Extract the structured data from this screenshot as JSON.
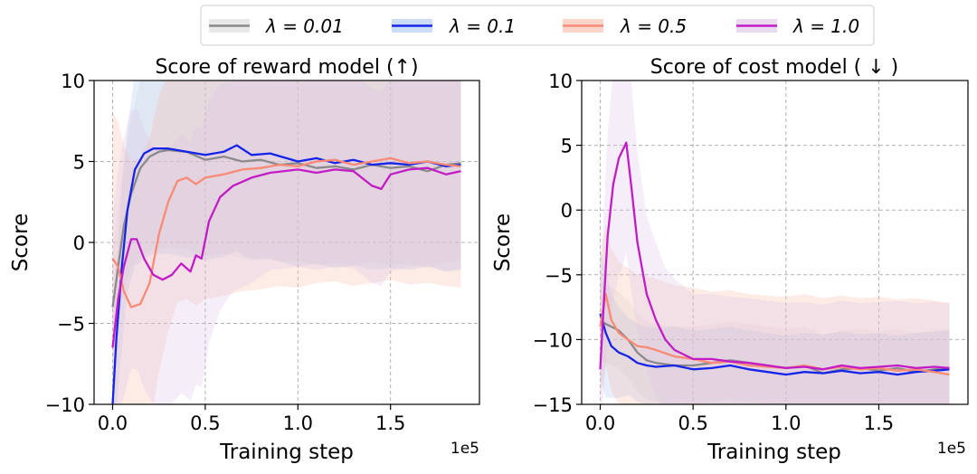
{
  "legend": {
    "position": "top-center",
    "items": [
      {
        "label": "λ = 0.01",
        "color": "#8a8a8a",
        "band": "#d9d9d9"
      },
      {
        "label": "λ = 0.1",
        "color": "#1524e8",
        "band": "#a9c6f0"
      },
      {
        "label": "λ = 0.5",
        "color": "#fa8a74",
        "band": "#f8b8a6"
      },
      {
        "label": "λ = 1.0",
        "color": "#c21cc6",
        "band": "#dcc2e6"
      }
    ]
  },
  "chart_data": [
    {
      "type": "line",
      "title": "Score of reward model (↑)",
      "xlabel": "Training step",
      "ylabel": "Score",
      "x_multiplier_label": "1e5",
      "xlim": [
        -0.1,
        1.98
      ],
      "ylim": [
        -10,
        10
      ],
      "xticks": [
        0.0,
        0.5,
        1.0,
        1.5
      ],
      "xtick_labels": [
        "0.0",
        "0.5",
        "1.0",
        "1.5"
      ],
      "yticks": [
        10,
        5,
        0,
        -5,
        -10
      ],
      "ytick_labels": [
        "10",
        "5",
        "0",
        "−5",
        "−10"
      ],
      "grid": true,
      "series": [
        {
          "name": "λ = 0.01",
          "x": [
            0.0,
            0.03,
            0.06,
            0.1,
            0.15,
            0.2,
            0.25,
            0.3,
            0.4,
            0.5,
            0.6,
            0.7,
            0.8,
            0.9,
            1.0,
            1.1,
            1.2,
            1.3,
            1.4,
            1.5,
            1.6,
            1.7,
            1.8,
            1.88
          ],
          "y": [
            -4.0,
            -1.5,
            1.0,
            3.0,
            4.6,
            5.3,
            5.6,
            5.7,
            5.6,
            5.1,
            5.3,
            5.0,
            5.1,
            4.8,
            4.9,
            4.6,
            4.7,
            4.5,
            4.8,
            4.6,
            4.7,
            4.4,
            4.8,
            4.9
          ],
          "band": [
            3.5,
            3.5,
            4.0,
            4.5,
            5.5,
            5.8,
            6.0,
            6.0,
            6.0,
            6.0,
            6.0,
            6.0,
            6.0,
            6.0,
            6.0,
            6.0,
            6.0,
            6.0,
            6.0,
            6.0,
            6.0,
            6.0,
            6.0,
            6.0
          ]
        },
        {
          "name": "λ = 0.1",
          "x": [
            0.0,
            0.02,
            0.05,
            0.08,
            0.12,
            0.17,
            0.22,
            0.3,
            0.4,
            0.5,
            0.6,
            0.67,
            0.75,
            0.85,
            1.0,
            1.1,
            1.2,
            1.3,
            1.4,
            1.5,
            1.6,
            1.7,
            1.8,
            1.88
          ],
          "y": [
            -10.0,
            -6.0,
            -1.5,
            2.0,
            4.5,
            5.5,
            5.8,
            5.8,
            5.6,
            5.4,
            5.6,
            6.0,
            5.4,
            5.5,
            5.0,
            5.2,
            4.9,
            5.1,
            4.8,
            4.9,
            4.8,
            5.0,
            4.7,
            4.8
          ],
          "band": [
            4.5,
            4.5,
            5.0,
            5.0,
            6.0,
            6.5,
            6.5,
            6.5,
            6.5,
            6.5,
            6.5,
            6.5,
            6.5,
            6.5,
            6.5,
            6.5,
            6.5,
            6.5,
            6.5,
            6.5,
            6.5,
            6.5,
            6.5,
            6.5
          ]
        },
        {
          "name": "λ = 0.5",
          "x": [
            0.0,
            0.03,
            0.06,
            0.1,
            0.15,
            0.2,
            0.25,
            0.3,
            0.35,
            0.4,
            0.45,
            0.5,
            0.6,
            0.7,
            0.8,
            0.9,
            1.0,
            1.1,
            1.2,
            1.3,
            1.4,
            1.5,
            1.6,
            1.7,
            1.8,
            1.88
          ],
          "y": [
            -1.0,
            -1.5,
            -3.0,
            -4.0,
            -3.8,
            -2.5,
            0.5,
            2.5,
            3.8,
            4.0,
            3.6,
            4.0,
            4.2,
            4.5,
            4.6,
            4.8,
            4.7,
            5.0,
            5.1,
            4.8,
            5.0,
            5.2,
            4.9,
            5.0,
            4.8,
            4.7
          ],
          "band": [
            9.0,
            9.0,
            9.0,
            9.0,
            9.0,
            9.0,
            8.5,
            8.0,
            7.5,
            7.5,
            7.5,
            7.5,
            7.5,
            7.5,
            7.5,
            7.5,
            7.5,
            7.5,
            7.5,
            7.5,
            7.5,
            7.5,
            7.5,
            7.5,
            7.5,
            7.5
          ]
        },
        {
          "name": "λ = 1.0",
          "x": [
            0.0,
            0.03,
            0.06,
            0.1,
            0.13,
            0.17,
            0.22,
            0.27,
            0.32,
            0.37,
            0.42,
            0.45,
            0.48,
            0.52,
            0.58,
            0.65,
            0.75,
            0.85,
            1.0,
            1.1,
            1.2,
            1.3,
            1.4,
            1.45,
            1.5,
            1.6,
            1.7,
            1.8,
            1.88
          ],
          "y": [
            -6.5,
            -3.5,
            -1.5,
            0.2,
            0.2,
            -1.0,
            -2.0,
            -2.3,
            -2.0,
            -1.3,
            -1.8,
            -0.8,
            -1.0,
            1.3,
            2.8,
            3.5,
            4.0,
            4.3,
            4.5,
            4.3,
            4.5,
            4.4,
            3.5,
            3.3,
            4.2,
            4.5,
            4.6,
            4.2,
            4.4
          ],
          "band": [
            8.0,
            8.0,
            8.0,
            8.0,
            8.0,
            8.0,
            8.0,
            8.0,
            8.0,
            8.0,
            8.0,
            8.0,
            8.0,
            7.5,
            7.0,
            6.5,
            6.5,
            6.0,
            6.0,
            6.0,
            6.0,
            6.0,
            6.0,
            6.0,
            6.0,
            6.0,
            6.0,
            6.0,
            6.0
          ]
        }
      ]
    },
    {
      "type": "line",
      "title": "Score of cost model ( ↓ )",
      "xlabel": "Training step",
      "ylabel": "Score",
      "x_multiplier_label": "1e5",
      "xlim": [
        -0.1,
        1.98
      ],
      "ylim": [
        -15,
        10
      ],
      "xticks": [
        0.0,
        0.5,
        1.0,
        1.5
      ],
      "xtick_labels": [
        "0.0",
        "0.5",
        "1.0",
        "1.5"
      ],
      "yticks": [
        10,
        5,
        0,
        -5,
        -10,
        -15
      ],
      "ytick_labels": [
        "10",
        "5",
        "0",
        "−5",
        "−10",
        "−15"
      ],
      "grid": true,
      "series": [
        {
          "name": "λ = 0.01",
          "x": [
            0.0,
            0.03,
            0.06,
            0.1,
            0.15,
            0.2,
            0.25,
            0.3,
            0.4,
            0.5,
            0.6,
            0.7,
            0.8,
            0.9,
            1.0,
            1.1,
            1.2,
            1.3,
            1.4,
            1.5,
            1.6,
            1.7,
            1.8,
            1.88
          ],
          "y": [
            -8.5,
            -8.8,
            -9.0,
            -9.3,
            -10.0,
            -11.0,
            -11.6,
            -11.8,
            -12.0,
            -12.0,
            -11.8,
            -11.6,
            -11.8,
            -12.0,
            -12.2,
            -12.0,
            -12.6,
            -12.3,
            -12.2,
            -12.4,
            -12.2,
            -12.5,
            -12.3,
            -12.2
          ],
          "band": [
            3.0,
            3.0,
            3.0,
            3.0,
            3.0,
            3.0,
            3.0,
            3.0,
            3.0,
            3.0,
            3.0,
            3.0,
            3.0,
            3.0,
            3.0,
            3.0,
            3.0,
            3.0,
            3.0,
            3.0,
            3.0,
            3.0,
            3.0,
            3.0
          ]
        },
        {
          "name": "λ = 0.1",
          "x": [
            0.0,
            0.03,
            0.06,
            0.1,
            0.15,
            0.2,
            0.25,
            0.3,
            0.4,
            0.5,
            0.6,
            0.7,
            0.8,
            0.9,
            1.0,
            1.1,
            1.2,
            1.3,
            1.4,
            1.5,
            1.6,
            1.7,
            1.8,
            1.88
          ],
          "y": [
            -8.0,
            -9.5,
            -10.5,
            -11.0,
            -11.3,
            -11.8,
            -12.0,
            -12.1,
            -12.0,
            -12.3,
            -12.2,
            -12.0,
            -12.3,
            -12.5,
            -12.7,
            -12.5,
            -12.6,
            -12.4,
            -12.6,
            -12.5,
            -12.7,
            -12.5,
            -12.4,
            -12.3
          ],
          "band": [
            5.0,
            5.0,
            4.0,
            3.5,
            3.0,
            3.0,
            3.0,
            3.0,
            3.0,
            3.0,
            3.0,
            3.0,
            3.0,
            3.0,
            3.0,
            3.0,
            3.0,
            3.0,
            3.0,
            3.0,
            3.0,
            3.0,
            3.0,
            3.0
          ]
        },
        {
          "name": "λ = 0.5",
          "x": [
            0.0,
            0.03,
            0.06,
            0.1,
            0.15,
            0.2,
            0.25,
            0.3,
            0.4,
            0.5,
            0.6,
            0.7,
            0.8,
            0.9,
            1.0,
            1.1,
            1.2,
            1.3,
            1.4,
            1.5,
            1.6,
            1.7,
            1.8,
            1.88
          ],
          "y": [
            -9.0,
            -6.5,
            -8.5,
            -9.5,
            -10.0,
            -10.5,
            -10.6,
            -10.8,
            -11.3,
            -11.5,
            -11.8,
            -11.7,
            -12.0,
            -12.1,
            -12.2,
            -12.0,
            -12.3,
            -12.1,
            -12.3,
            -12.2,
            -12.4,
            -12.3,
            -12.5,
            -12.7
          ],
          "band": [
            5.5,
            5.5,
            5.5,
            5.5,
            5.5,
            5.5,
            5.5,
            5.5,
            5.5,
            5.5,
            5.5,
            5.5,
            5.5,
            5.5,
            5.5,
            5.5,
            5.5,
            5.5,
            5.5,
            5.5,
            5.5,
            5.5,
            5.5,
            5.5
          ]
        },
        {
          "name": "λ = 1.0",
          "x": [
            0.0,
            0.02,
            0.04,
            0.07,
            0.1,
            0.12,
            0.14,
            0.17,
            0.2,
            0.25,
            0.3,
            0.35,
            0.4,
            0.5,
            0.6,
            0.7,
            0.8,
            0.9,
            1.0,
            1.1,
            1.2,
            1.3,
            1.4,
            1.5,
            1.6,
            1.7,
            1.8,
            1.88
          ],
          "y": [
            -12.3,
            -7.0,
            -2.0,
            2.0,
            4.0,
            4.6,
            5.2,
            1.5,
            -2.5,
            -6.5,
            -8.5,
            -10.0,
            -10.8,
            -11.5,
            -11.5,
            -11.7,
            -11.8,
            -12.0,
            -12.2,
            -12.1,
            -12.3,
            -12.0,
            -12.2,
            -12.1,
            -12.0,
            -12.2,
            -12.1,
            -12.2
          ],
          "band": [
            6.0,
            7.0,
            8.0,
            9.0,
            9.0,
            9.0,
            8.5,
            8.0,
            7.0,
            6.0,
            6.0,
            5.5,
            5.5,
            5.0,
            5.0,
            5.0,
            5.0,
            5.0,
            5.0,
            5.0,
            5.0,
            5.0,
            5.0,
            5.0,
            5.0,
            5.0,
            5.0,
            5.0
          ]
        }
      ]
    }
  ]
}
